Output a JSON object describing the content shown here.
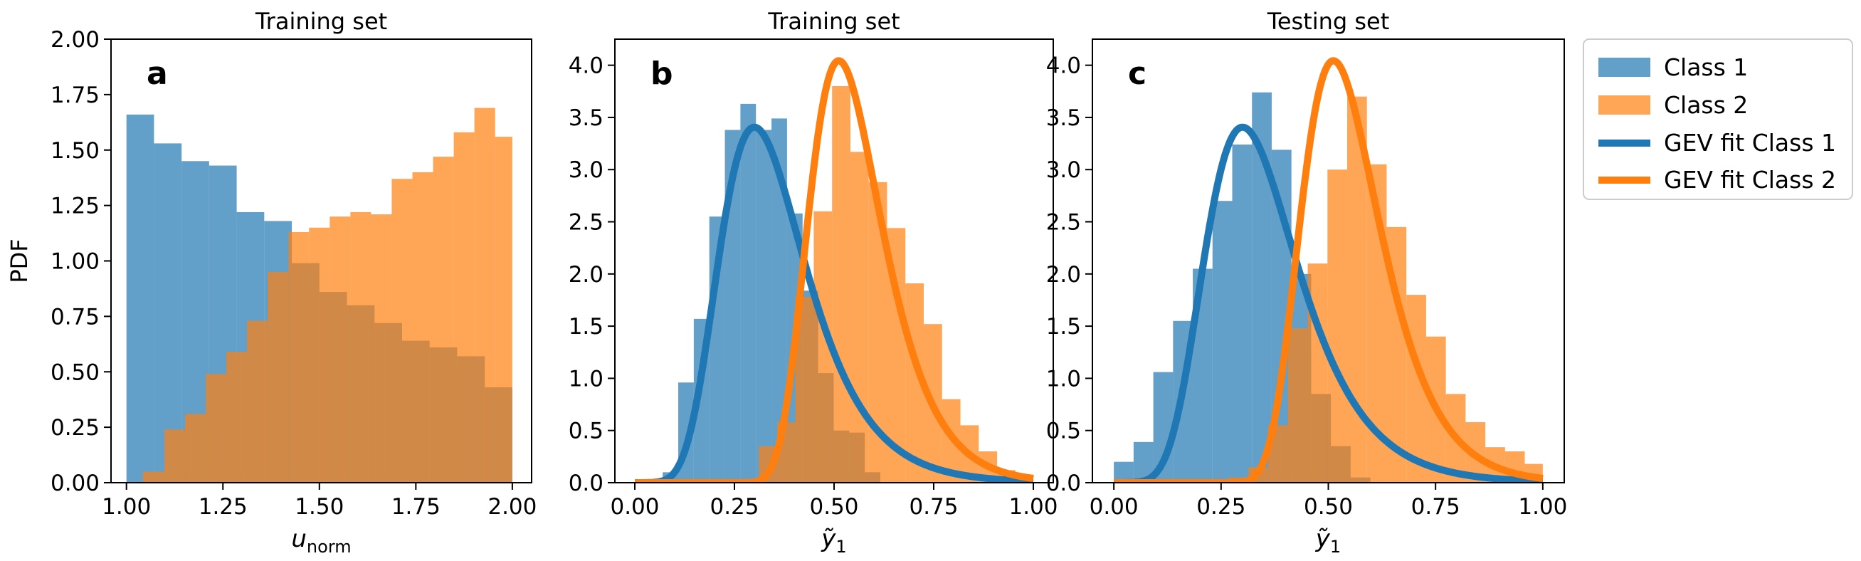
{
  "chart_data": [
    {
      "type": "histogram",
      "panel_label": "a",
      "title": "Training set",
      "xlabel": "u",
      "xlabel_sub": "norm",
      "ylabel": "PDF",
      "xlim": [
        0.96,
        2.05
      ],
      "ylim": [
        0,
        2.0
      ],
      "xticks": [
        1.0,
        1.25,
        1.5,
        1.75,
        2.0
      ],
      "xtick_labels": [
        "1.00",
        "1.25",
        "1.50",
        "1.75",
        "2.00"
      ],
      "yticks": [
        0,
        0.25,
        0.5,
        0.75,
        1.0,
        1.25,
        1.5,
        1.75,
        2.0
      ],
      "ytick_labels": [
        "0.00",
        "0.25",
        "0.50",
        "0.75",
        "1.00",
        "1.25",
        "1.50",
        "1.75",
        "2.00"
      ],
      "series": [
        {
          "name": "Class 1",
          "kind": "hist",
          "edges": [
            1.0,
            1.0714,
            1.1429,
            1.2143,
            1.2857,
            1.3571,
            1.4286,
            1.5,
            1.5714,
            1.6429,
            1.7143,
            1.7857,
            1.8571,
            1.9286,
            2.0
          ],
          "values": [
            1.66,
            1.53,
            1.45,
            1.43,
            1.22,
            1.18,
            0.99,
            0.86,
            0.8,
            0.72,
            0.64,
            0.61,
            0.57,
            0.43
          ]
        },
        {
          "name": "Class 2",
          "kind": "hist",
          "edges": [
            1.0425,
            1.0982,
            1.1518,
            1.2054,
            1.2589,
            1.3125,
            1.3661,
            1.4196,
            1.4732,
            1.5268,
            1.5804,
            1.6339,
            1.6875,
            1.7411,
            1.7946,
            1.8482,
            1.9018,
            1.9554,
            2.0
          ],
          "values": [
            0.05,
            0.24,
            0.31,
            0.49,
            0.59,
            0.73,
            0.95,
            1.13,
            1.15,
            1.2,
            1.22,
            1.21,
            1.37,
            1.4,
            1.47,
            1.58,
            1.69,
            1.56
          ],
          "visible_edges": [
            1.0425,
            1.0982,
            1.1518,
            1.2054,
            1.2589,
            1.3125,
            1.3661,
            1.4196,
            1.4732,
            1.5268,
            1.5804,
            1.6339,
            1.6875,
            1.7411,
            1.7946,
            1.8482,
            1.9018,
            1.9554,
            2.0
          ]
        }
      ]
    },
    {
      "type": "histogram",
      "panel_label": "b",
      "title": "Training set",
      "xlabel": "ỹ",
      "xlabel_sub": "1",
      "ylabel": "",
      "xlim": [
        -0.05,
        1.05
      ],
      "ylim": [
        0,
        4.25
      ],
      "xticks": [
        0,
        0.25,
        0.5,
        0.75,
        1.0
      ],
      "xtick_labels": [
        "0.00",
        "0.25",
        "0.50",
        "0.75",
        "1.00"
      ],
      "yticks": [
        0,
        0.5,
        1.0,
        1.5,
        2.0,
        2.5,
        3.0,
        3.5,
        4.0
      ],
      "ytick_labels": [
        "0.0",
        "0.5",
        "1.0",
        "1.5",
        "2.0",
        "2.5",
        "3.0",
        "3.5",
        "4.0"
      ],
      "series": [
        {
          "name": "Class 1",
          "kind": "hist",
          "edges": [
            0.07,
            0.109,
            0.148,
            0.187,
            0.226,
            0.265,
            0.304,
            0.343,
            0.382,
            0.421,
            0.46,
            0.499,
            0.538,
            0.577,
            0.616
          ],
          "values": [
            0.1,
            0.96,
            1.57,
            2.55,
            3.38,
            3.63,
            3.38,
            3.49,
            2.58,
            1.84,
            1.05,
            0.5,
            0.48,
            0.1
          ]
        },
        {
          "name": "Class 2",
          "kind": "hist",
          "edges": [
            0.265,
            0.311,
            0.357,
            0.403,
            0.449,
            0.495,
            0.541,
            0.587,
            0.633,
            0.679,
            0.725,
            0.771,
            0.817,
            0.863,
            0.909,
            0.955,
            1.0
          ],
          "values": [
            0.03,
            0.35,
            0.58,
            1.78,
            2.6,
            3.8,
            3.17,
            2.88,
            2.44,
            1.91,
            1.52,
            0.8,
            0.55,
            0.3,
            0.12,
            0.05
          ]
        },
        {
          "name": "GEV fit Class 1",
          "kind": "curve",
          "mu": 0.3,
          "sigma": 0.108,
          "xi": 0.0,
          "range": [
            0.0,
            1.0
          ]
        },
        {
          "name": "GEV fit Class 2",
          "kind": "curve",
          "mu": 0.51,
          "sigma": 0.091,
          "xi": -0.02,
          "range": [
            0.0,
            1.0
          ]
        }
      ]
    },
    {
      "type": "histogram",
      "panel_label": "c",
      "title": "Testing set",
      "xlabel": "ỹ",
      "xlabel_sub": "1",
      "ylabel": "",
      "xlim": [
        -0.05,
        1.05
      ],
      "ylim": [
        0,
        4.25
      ],
      "xticks": [
        0,
        0.25,
        0.5,
        0.75,
        1.0
      ],
      "xtick_labels": [
        "0.00",
        "0.25",
        "0.50",
        "0.75",
        "1.00"
      ],
      "yticks": [
        0,
        0.5,
        1.0,
        1.5,
        2.0,
        2.5,
        3.0,
        3.5,
        4.0
      ],
      "ytick_labels": [
        "0.0",
        "0.5",
        "1.0",
        "1.5",
        "2.0",
        "2.5",
        "3.0",
        "3.5",
        "4.0"
      ],
      "series": [
        {
          "name": "Class 1",
          "kind": "hist",
          "edges": [
            0.0,
            0.046,
            0.092,
            0.138,
            0.184,
            0.23,
            0.276,
            0.322,
            0.368,
            0.414,
            0.46,
            0.506,
            0.552,
            0.598
          ],
          "values": [
            0.2,
            0.39,
            1.06,
            1.55,
            2.05,
            2.7,
            3.24,
            3.74,
            3.19,
            2.0,
            0.85,
            0.35,
            0.05
          ]
        },
        {
          "name": "Class 2",
          "kind": "hist",
          "edges": [
            0.222,
            0.268,
            0.314,
            0.36,
            0.406,
            0.452,
            0.498,
            0.544,
            0.59,
            0.636,
            0.682,
            0.728,
            0.774,
            0.82,
            0.866,
            0.912,
            0.958,
            1.0
          ],
          "values": [
            0.03,
            0.05,
            0.15,
            0.55,
            1.48,
            2.1,
            3.0,
            3.7,
            3.05,
            2.45,
            1.8,
            1.4,
            0.85,
            0.58,
            0.34,
            0.3,
            0.18
          ]
        },
        {
          "name": "GEV fit Class 1",
          "kind": "curve",
          "mu": 0.3,
          "sigma": 0.108,
          "xi": 0.0,
          "range": [
            0.0,
            1.0
          ]
        },
        {
          "name": "GEV fit Class 2",
          "kind": "curve",
          "mu": 0.51,
          "sigma": 0.091,
          "xi": -0.02,
          "range": [
            0.0,
            1.0
          ]
        }
      ]
    }
  ],
  "legend": {
    "placement": "right-outside",
    "entries": [
      "Class 1",
      "Class 2",
      "GEV fit Class 1",
      "GEV fit Class 2"
    ]
  },
  "colors": {
    "class1": "#1f77b4",
    "class2": "#ff7f0e"
  }
}
